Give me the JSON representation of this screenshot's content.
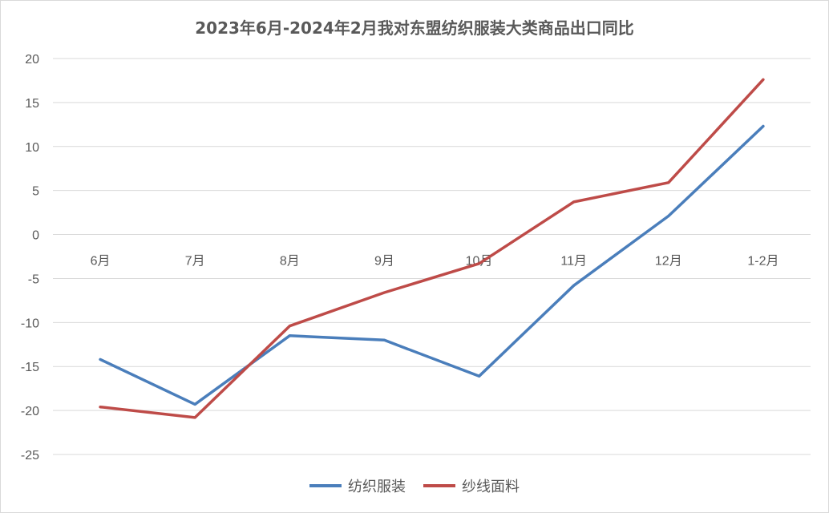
{
  "chart_data": {
    "type": "line",
    "title": "2023年6月-2024年2月我对东盟纺织服装大类商品出口同比",
    "categories": [
      "6月",
      "7月",
      "8月",
      "9月",
      "10月",
      "11月",
      "12月",
      "1-2月"
    ],
    "ylim": [
      -25,
      20
    ],
    "yticks": [
      20,
      15,
      10,
      5,
      0,
      -5,
      -10,
      -15,
      -20,
      -25
    ],
    "grid": true,
    "legend_position": "bottom",
    "series": [
      {
        "name": "纺织服装",
        "color": "#4a7ebb",
        "values": [
          -14.2,
          -19.3,
          -11.5,
          -12.0,
          -16.1,
          -5.8,
          2.1,
          12.3
        ]
      },
      {
        "name": "纱线面料",
        "color": "#be4b48",
        "values": [
          -19.6,
          -20.8,
          -10.4,
          -6.6,
          -3.3,
          3.7,
          5.9,
          17.6
        ]
      }
    ]
  }
}
